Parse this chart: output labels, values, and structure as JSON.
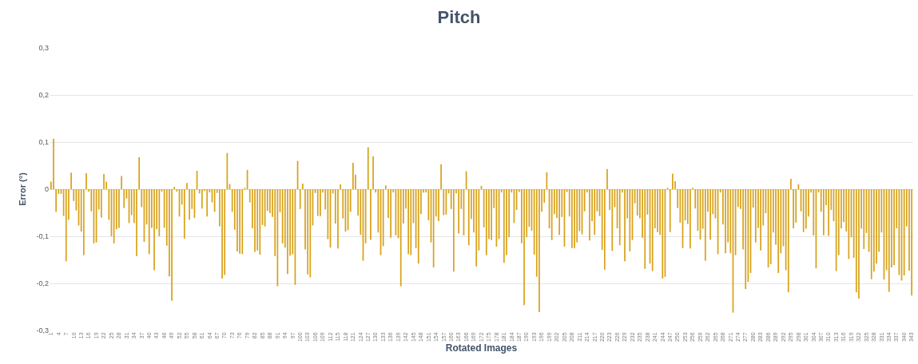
{
  "chart_data": {
    "type": "bar",
    "title": "Pitch",
    "xlabel": "Rotated Images",
    "ylabel": "Error (°)",
    "color": "#d8a21a",
    "grid": "y",
    "legend": false,
    "ylim": [
      -0.3,
      0.3
    ],
    "yticks": [
      {
        "value": -0.3,
        "label": "-0,3"
      },
      {
        "value": -0.2,
        "label": "-0,2"
      },
      {
        "value": -0.1,
        "label": "-0,1"
      },
      0,
      {
        "value": 0.1,
        "label": "0,1"
      },
      {
        "value": 0.2,
        "label": "0,2"
      },
      {
        "value": 0.3,
        "label": "0,3"
      }
    ],
    "categories": [
      "1",
      null,
      null,
      "4",
      null,
      null,
      "7",
      null,
      null,
      "10",
      null,
      null,
      "13",
      null,
      null,
      "16",
      null,
      null,
      "19",
      null,
      null,
      "22",
      null,
      null,
      "25",
      null,
      null,
      "28",
      null,
      null,
      "31",
      null,
      null,
      "34",
      null,
      null,
      "37",
      null,
      null,
      "40",
      null,
      null,
      "43",
      null,
      null,
      "46",
      null,
      null,
      "49",
      null,
      null,
      "52",
      null,
      null,
      "55",
      null,
      null,
      "58",
      null,
      null,
      "61",
      null,
      null,
      "64",
      null,
      null,
      "67",
      null,
      null,
      "70",
      null,
      null,
      "73",
      null,
      null,
      "76",
      null,
      null,
      "79",
      null,
      null,
      "82",
      null,
      null,
      "85",
      null,
      null,
      "88",
      null,
      null,
      "91",
      null,
      null,
      "94",
      null,
      null,
      "97",
      null,
      null,
      "100",
      null,
      null,
      "103",
      null,
      null,
      "106",
      null,
      null,
      "109",
      null,
      null,
      "112",
      null,
      null,
      "115",
      null,
      null,
      "118",
      null,
      null,
      "121",
      null,
      null,
      "124",
      null,
      null,
      "127",
      null,
      null,
      "130",
      null,
      null,
      "133",
      null,
      null,
      "136",
      null,
      null,
      "139",
      null,
      null,
      "142",
      null,
      null,
      "145",
      null,
      null,
      "148",
      null,
      null,
      "151",
      null,
      null,
      "154",
      null,
      null,
      "157",
      null,
      null,
      "160",
      null,
      null,
      "163",
      null,
      null,
      "166",
      null,
      null,
      "169",
      null,
      null,
      "172",
      null,
      null,
      "175",
      null,
      null,
      "178",
      null,
      null,
      "181",
      null,
      null,
      "184",
      null,
      null,
      "187",
      null,
      null,
      "190",
      null,
      null,
      "193",
      null,
      null,
      "196",
      null,
      null,
      "199",
      null,
      null,
      "202",
      null,
      null,
      "205",
      null,
      null,
      "208",
      null,
      null,
      "211",
      null,
      null,
      "214",
      null,
      null,
      "217",
      null,
      null,
      "220",
      null,
      null,
      "223",
      null,
      null,
      "226",
      null,
      null,
      "229",
      null,
      null,
      "232",
      null,
      null,
      "235",
      null,
      null,
      "238",
      null,
      null,
      "241",
      null,
      null,
      "244",
      null,
      null,
      "247",
      null,
      null,
      "250",
      null,
      null,
      "253",
      null,
      null,
      "256",
      null,
      null,
      "259",
      null,
      null,
      "262",
      null,
      null,
      "265",
      null,
      null,
      "268",
      null,
      null,
      "271",
      null,
      null,
      "274",
      null,
      null,
      "277",
      null,
      null,
      "280",
      null,
      null,
      "283",
      null,
      null,
      "286",
      null,
      null,
      "289",
      null,
      null,
      "292",
      null,
      null,
      "295",
      null,
      null,
      "298",
      null,
      null,
      "301",
      null,
      null,
      "304",
      null,
      null,
      "307",
      null,
      null,
      "310",
      null,
      null,
      "313",
      null,
      null,
      "316",
      null,
      null,
      "319",
      null,
      null,
      "322",
      null,
      null,
      "325",
      null,
      null,
      "328",
      null,
      null,
      "331",
      null,
      null,
      "334",
      null,
      null,
      "337",
      null,
      null,
      "340",
      null,
      null,
      "343"
    ],
    "values": [
      0.016,
      0.107,
      -0.048,
      -0.01,
      -0.01,
      -0.057,
      -0.153,
      -0.065,
      0.035,
      -0.025,
      -0.045,
      -0.077,
      -0.09,
      -0.14,
      0.034,
      -0.005,
      -0.047,
      -0.115,
      -0.113,
      -0.043,
      -0.06,
      0.032,
      0.016,
      -0.065,
      -0.1,
      -0.115,
      -0.085,
      -0.082,
      0.028,
      -0.04,
      -0.02,
      -0.072,
      -0.055,
      -0.072,
      -0.142,
      0.068,
      -0.038,
      -0.112,
      -0.075,
      -0.138,
      -0.082,
      -0.172,
      -0.085,
      -0.1,
      -0.005,
      -0.082,
      -0.12,
      -0.185,
      -0.237,
      0.005,
      -0.005,
      -0.058,
      -0.033,
      -0.105,
      0.013,
      -0.065,
      -0.042,
      -0.061,
      0.039,
      -0.009,
      -0.041,
      -0.004,
      -0.058,
      -0.007,
      -0.028,
      -0.048,
      -0.008,
      -0.079,
      -0.19,
      -0.182,
      0.077,
      0.011,
      -0.048,
      -0.086,
      -0.132,
      -0.137,
      -0.138,
      0.003,
      0.041,
      -0.028,
      -0.083,
      -0.133,
      -0.13,
      -0.139,
      -0.076,
      -0.079,
      -0.046,
      -0.051,
      -0.059,
      -0.142,
      -0.206,
      -0.049,
      -0.115,
      -0.124,
      -0.18,
      -0.141,
      -0.138,
      -0.203,
      0.06,
      -0.042,
      0.012,
      -0.128,
      -0.181,
      -0.187,
      -0.077,
      -0.008,
      -0.057,
      -0.057,
      -0.007,
      -0.043,
      -0.106,
      -0.124,
      -0.009,
      -0.073,
      -0.126,
      0.01,
      -0.062,
      -0.09,
      -0.087,
      -0.048,
      0.056,
      0.031,
      -0.056,
      -0.097,
      -0.152,
      -0.115,
      0.089,
      -0.107,
      0.07,
      -0.007,
      -0.092,
      -0.14,
      -0.121,
      0.008,
      -0.061,
      -0.103,
      -0.007,
      -0.098,
      -0.104,
      -0.206,
      -0.073,
      -0.041,
      -0.138,
      -0.14,
      -0.072,
      -0.125,
      -0.158,
      -0.053,
      -0.007,
      -0.007,
      -0.066,
      -0.113,
      -0.166,
      -0.058,
      -0.068,
      0.053,
      -0.055,
      -0.054,
      -0.009,
      -0.042,
      -0.175,
      -0.009,
      -0.094,
      -0.042,
      -0.098,
      0.038,
      -0.119,
      -0.063,
      -0.092,
      -0.164,
      -0.13,
      0.007,
      -0.081,
      -0.14,
      -0.106,
      -0.108,
      -0.04,
      -0.122,
      -0.106,
      -0.007,
      -0.156,
      -0.14,
      -0.102,
      -0.007,
      -0.072,
      -0.044,
      -0.006,
      -0.115,
      -0.246,
      -0.102,
      -0.08,
      -0.088,
      -0.139,
      -0.186,
      -0.261,
      -0.048,
      -0.029,
      0.036,
      -0.083,
      -0.108,
      -0.053,
      -0.061,
      -0.097,
      -0.059,
      -0.122,
      -0.006,
      -0.058,
      -0.125,
      -0.125,
      -0.113,
      -0.089,
      -0.096,
      -0.047,
      -0.007,
      -0.109,
      -0.068,
      -0.097,
      -0.047,
      -0.057,
      -0.129,
      -0.171,
      0.043,
      -0.044,
      -0.131,
      -0.038,
      -0.083,
      -0.119,
      -0.007,
      -0.153,
      -0.062,
      -0.132,
      -0.108,
      -0.03,
      -0.056,
      -0.062,
      -0.103,
      -0.169,
      -0.054,
      -0.158,
      -0.174,
      -0.083,
      -0.091,
      -0.097,
      -0.19,
      -0.186,
      0.003,
      -0.091,
      0.033,
      0.017,
      -0.04,
      -0.071,
      -0.125,
      -0.066,
      -0.074,
      -0.126,
      0.003,
      -0.041,
      -0.088,
      -0.107,
      -0.084,
      -0.152,
      -0.048,
      -0.107,
      -0.053,
      -0.062,
      -0.138,
      -0.007,
      -0.075,
      -0.136,
      -0.113,
      -0.136,
      -0.262,
      -0.14,
      -0.038,
      -0.042,
      -0.128,
      -0.212,
      -0.197,
      -0.178,
      -0.039,
      -0.113,
      -0.082,
      -0.13,
      -0.077,
      -0.051,
      -0.166,
      -0.159,
      -0.092,
      -0.118,
      -0.178,
      -0.136,
      -0.121,
      -0.172,
      -0.219,
      0.022,
      -0.083,
      -0.071,
      0.01,
      -0.047,
      -0.091,
      -0.084,
      -0.058,
      -0.007,
      -0.098,
      -0.168,
      -0.007,
      -0.048,
      -0.098,
      -0.034,
      -0.099,
      -0.044,
      -0.068,
      -0.174,
      -0.14,
      -0.083,
      -0.07,
      -0.09,
      -0.148,
      -0.102,
      -0.146,
      -0.219,
      -0.232,
      -0.084,
      -0.127,
      -0.093,
      -0.133,
      -0.191,
      -0.175,
      -0.158,
      -0.133,
      -0.092,
      -0.192,
      -0.172,
      -0.218,
      -0.166,
      -0.161,
      -0.083,
      -0.182,
      -0.194,
      -0.183,
      -0.079,
      -0.173,
      -0.226
    ]
  }
}
